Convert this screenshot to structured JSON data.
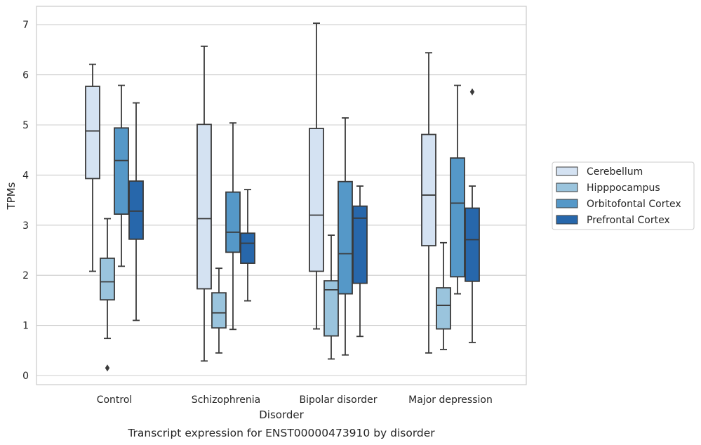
{
  "chart_data": {
    "type": "box",
    "caption": "Transcript expression for ENST00000473910 by disorder",
    "xlabel": "Disorder",
    "ylabel": "TPMs",
    "ylim": [
      -0.18,
      7.4
    ],
    "yticks": [
      0,
      1,
      2,
      3,
      4,
      5,
      6,
      7
    ],
    "grid": "horizontal",
    "legend_position": "right",
    "categories": [
      "Control",
      "Schizophrenia",
      "Bipolar disorder",
      "Major depression"
    ],
    "series": [
      {
        "name": "Cerebellum",
        "color": "#d4e2f2",
        "boxes": [
          {
            "whislo": 2.08,
            "q1": 3.93,
            "med": 4.88,
            "q3": 5.77,
            "whishi": 6.21,
            "fliers": []
          },
          {
            "whislo": 0.29,
            "q1": 1.73,
            "med": 3.13,
            "q3": 5.01,
            "whishi": 6.57,
            "fliers": []
          },
          {
            "whislo": 0.93,
            "q1": 2.08,
            "med": 3.2,
            "q3": 4.93,
            "whishi": 7.03,
            "fliers": []
          },
          {
            "whislo": 0.45,
            "q1": 2.59,
            "med": 3.6,
            "q3": 4.81,
            "whishi": 6.44,
            "fliers": []
          }
        ]
      },
      {
        "name": "Hipppocampus",
        "color": "#9ac4dd",
        "boxes": [
          {
            "whislo": 0.74,
            "q1": 1.51,
            "med": 1.87,
            "q3": 2.34,
            "whishi": 3.13,
            "fliers": [
              0.15
            ]
          },
          {
            "whislo": 0.45,
            "q1": 0.95,
            "med": 1.25,
            "q3": 1.65,
            "whishi": 2.14,
            "fliers": []
          },
          {
            "whislo": 0.33,
            "q1": 0.79,
            "med": 1.71,
            "q3": 1.89,
            "whishi": 2.8,
            "fliers": []
          },
          {
            "whislo": 0.52,
            "q1": 0.93,
            "med": 1.4,
            "q3": 1.75,
            "whishi": 2.65,
            "fliers": []
          }
        ]
      },
      {
        "name": "Orbitofontal Cortex",
        "color": "#5598c8",
        "boxes": [
          {
            "whislo": 2.18,
            "q1": 3.22,
            "med": 4.29,
            "q3": 4.94,
            "whishi": 5.79,
            "fliers": []
          },
          {
            "whislo": 0.92,
            "q1": 2.46,
            "med": 2.86,
            "q3": 3.66,
            "whishi": 5.04,
            "fliers": []
          },
          {
            "whislo": 0.41,
            "q1": 1.63,
            "med": 2.43,
            "q3": 3.87,
            "whishi": 5.14,
            "fliers": []
          },
          {
            "whislo": 1.63,
            "q1": 1.97,
            "med": 3.44,
            "q3": 4.34,
            "whishi": 5.79,
            "fliers": []
          }
        ]
      },
      {
        "name": "Prefrontal Cortex",
        "color": "#2767ab",
        "boxes": [
          {
            "whislo": 1.1,
            "q1": 2.72,
            "med": 3.28,
            "q3": 3.88,
            "whishi": 5.44,
            "fliers": []
          },
          {
            "whislo": 1.49,
            "q1": 2.24,
            "med": 2.64,
            "q3": 2.84,
            "whishi": 3.71,
            "fliers": []
          },
          {
            "whislo": 0.78,
            "q1": 1.84,
            "med": 3.14,
            "q3": 3.38,
            "whishi": 3.78,
            "fliers": []
          },
          {
            "whislo": 0.66,
            "q1": 1.88,
            "med": 2.71,
            "q3": 3.34,
            "whishi": 3.78,
            "fliers": [
              5.66
            ]
          }
        ]
      }
    ]
  }
}
